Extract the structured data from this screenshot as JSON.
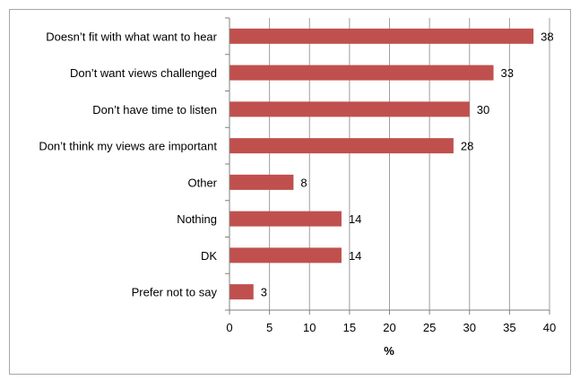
{
  "chart_data": {
    "type": "bar",
    "orientation": "horizontal",
    "categories": [
      "Doesn’t fit with what want to hear",
      "Don’t want views challenged",
      "Don’t have time to listen",
      "Don’t think my views are important",
      "Other",
      "Nothing",
      "DK",
      "Prefer not to say"
    ],
    "values": [
      38,
      33,
      30,
      28,
      8,
      14,
      14,
      3
    ],
    "title": "",
    "xlabel": "%",
    "ylabel": "",
    "xlim": [
      0,
      40
    ],
    "xticks": [
      0,
      5,
      10,
      15,
      20,
      25,
      30,
      35,
      40
    ],
    "grid": "vertical",
    "legend": "none",
    "bar_color": "#c0504d",
    "data_labels": true
  }
}
